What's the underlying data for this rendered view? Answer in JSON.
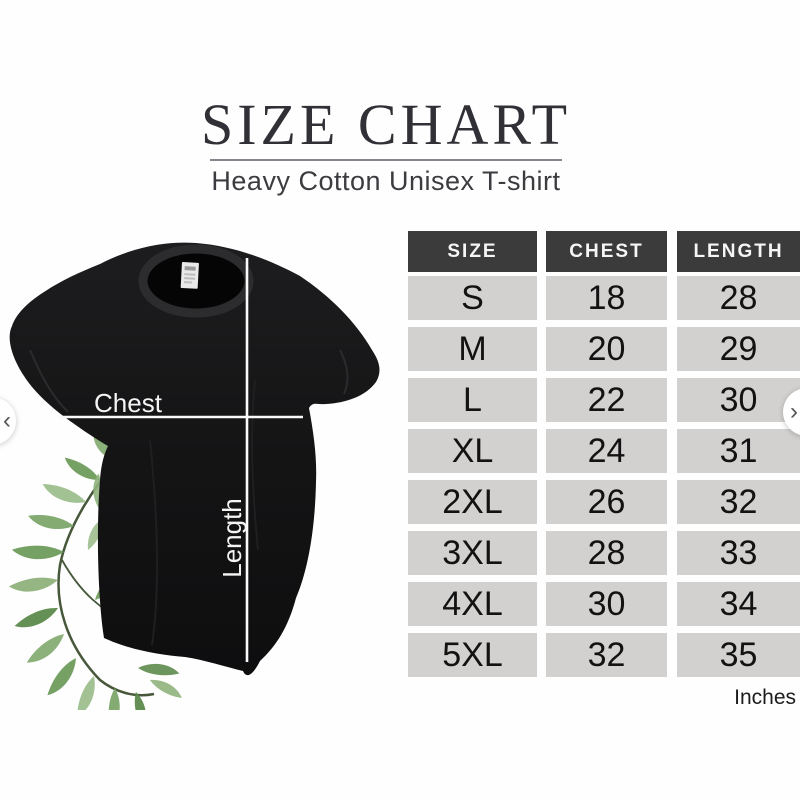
{
  "header": {
    "title": "SIZE CHART",
    "subtitle": "Heavy Cotton Unisex T-shirt"
  },
  "photo": {
    "description": "Black heavy cotton unisex t-shirt photo with white measurement guide lines and a green watercolor leaf branch",
    "chest_label": "Chest",
    "length_label": "Length"
  },
  "table": {
    "unit_label": "Inches"
  },
  "carousel": {
    "prev_icon": "‹",
    "next_icon": "›"
  },
  "colors": {
    "header_cell_bg": "#3b3b3b",
    "header_cell_text": "#f5f5f5",
    "data_cell_bg": "#d2d1d0",
    "title_text": "#303036",
    "divider": "#85858d",
    "shirt_black": "#141414",
    "leaf_green": "#7ca76a"
  },
  "chart_data": {
    "type": "table",
    "title": "SIZE CHART",
    "subtitle": "Heavy Cotton Unisex T-shirt",
    "unit": "Inches",
    "columns": [
      "SIZE",
      "CHEST",
      "LENGTH"
    ],
    "rows": [
      [
        "S",
        18,
        28
      ],
      [
        "M",
        20,
        29
      ],
      [
        "L",
        22,
        30
      ],
      [
        "XL",
        24,
        31
      ],
      [
        "2XL",
        26,
        32
      ],
      [
        "3XL",
        28,
        33
      ],
      [
        "4XL",
        30,
        34
      ],
      [
        "5XL",
        32,
        35
      ]
    ]
  }
}
